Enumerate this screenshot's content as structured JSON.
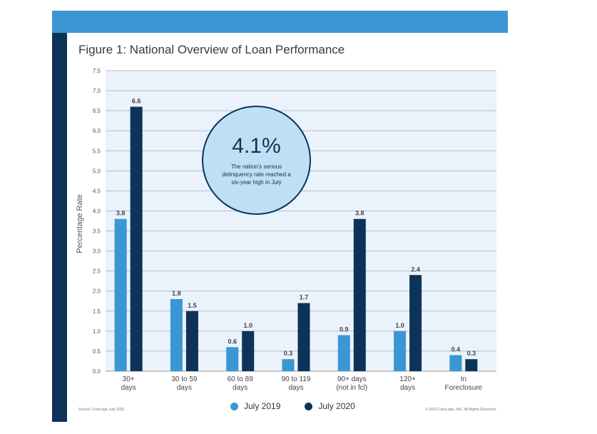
{
  "title": "Figure 1: National Overview of Loan Performance",
  "source": "Source: CoreLogic July 2020",
  "copyright": "© 2020 CoreLogic, INC. All Rights Reserved.",
  "callout": {
    "value": "4.1%",
    "text": "The nation's serious delinquency rate reached a six-year high in July"
  },
  "colors": {
    "band_top": "#3b97d3",
    "band_side": "#0d3358",
    "plot_bg": "#eaf3fb",
    "series_2019": "#3b97d3",
    "series_2020": "#0d3358"
  },
  "chart_data": {
    "type": "bar",
    "ylabel": "Percentage Rate",
    "ylim": [
      0,
      7.5
    ],
    "yticks": [
      "0.0",
      "0.5",
      "1.0",
      "1.5",
      "2.0",
      "2.5",
      "3.0",
      "3.5",
      "4.0",
      "4.5",
      "5.0",
      "5.5",
      "6.0",
      "6.5",
      "7.0",
      "7.5"
    ],
    "categories": [
      [
        "30+",
        "days"
      ],
      [
        "30 to 59",
        "days"
      ],
      [
        "60 to 89",
        "days"
      ],
      [
        "90 to 119",
        "days"
      ],
      [
        "90+ days",
        "(not in fcl)"
      ],
      [
        "120+",
        "days"
      ],
      [
        "In",
        "Foreclosure"
      ]
    ],
    "series": [
      {
        "name": "July 2019",
        "values": [
          3.8,
          1.8,
          0.6,
          0.3,
          0.9,
          1.0,
          0.4
        ],
        "labels": [
          "3.8",
          "1.8",
          "0.6",
          "0.3",
          "0.9",
          "1.0",
          "0.4"
        ]
      },
      {
        "name": "July 2020",
        "values": [
          6.6,
          1.5,
          1.0,
          1.7,
          3.8,
          2.4,
          0.3
        ],
        "labels": [
          "6.6",
          "1.5",
          "1.0",
          "1.7",
          "3.8",
          "2.4",
          "0.3"
        ]
      }
    ],
    "legend": "bottom-center",
    "grid": true
  }
}
